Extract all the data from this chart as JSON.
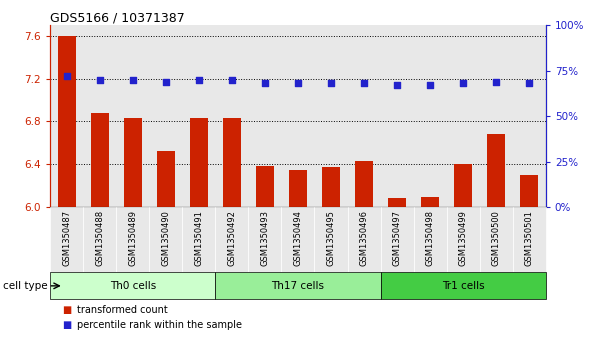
{
  "title": "GDS5166 / 10371387",
  "samples": [
    "GSM1350487",
    "GSM1350488",
    "GSM1350489",
    "GSM1350490",
    "GSM1350491",
    "GSM1350492",
    "GSM1350493",
    "GSM1350494",
    "GSM1350495",
    "GSM1350496",
    "GSM1350497",
    "GSM1350498",
    "GSM1350499",
    "GSM1350500",
    "GSM1350501"
  ],
  "transformed_count": [
    7.6,
    6.88,
    6.83,
    6.52,
    6.83,
    6.83,
    6.38,
    6.35,
    6.37,
    6.43,
    6.08,
    6.09,
    6.4,
    6.68,
    6.3
  ],
  "percentile_rank": [
    72,
    70,
    70,
    69,
    70,
    70,
    68,
    68,
    68,
    68,
    67,
    67,
    68,
    69,
    68
  ],
  "cell_types": [
    {
      "label": "Th0 cells",
      "start": 0,
      "end": 4,
      "color": "#ccffcc"
    },
    {
      "label": "Th17 cells",
      "start": 5,
      "end": 9,
      "color": "#99ee99"
    },
    {
      "label": "Tr1 cells",
      "start": 10,
      "end": 14,
      "color": "#44cc44"
    }
  ],
  "ylim_left": [
    6.0,
    7.7
  ],
  "ylim_right": [
    0,
    100
  ],
  "yticks_left": [
    6.0,
    6.4,
    6.8,
    7.2,
    7.6
  ],
  "yticks_right": [
    0,
    25,
    50,
    75,
    100
  ],
  "ytick_labels_right": [
    "0%",
    "25%",
    "50%",
    "75%",
    "100%"
  ],
  "bar_color": "#cc2200",
  "dot_color": "#2222cc",
  "bg_color": "#e8e8e8",
  "grid_color": "#000000",
  "bar_width": 0.55
}
